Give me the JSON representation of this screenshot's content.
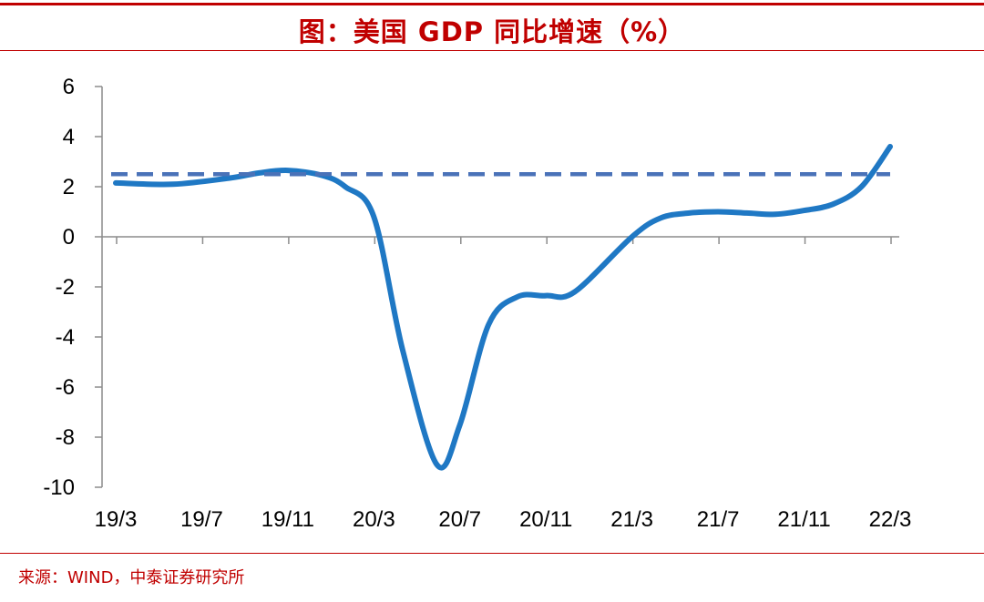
{
  "header": {
    "title": "图：美国 GDP 同比增速（%）"
  },
  "footer": {
    "source": "来源：WIND，中泰证券研究所"
  },
  "colors": {
    "accent": "#c00000",
    "series": "#1f78c4",
    "reference": "#4a72b8"
  },
  "chart_data": {
    "type": "line",
    "title": "图：美国 GDP 同比增速（%）",
    "xlabel": "",
    "ylabel": "",
    "ylim": [
      -10,
      6
    ],
    "yticks": [
      6,
      4,
      2,
      0,
      -2,
      -4,
      -6,
      -8,
      -10
    ],
    "xticks": [
      "19/3",
      "19/7",
      "19/11",
      "20/3",
      "20/7",
      "20/11",
      "21/3",
      "21/7",
      "21/11",
      "22/3"
    ],
    "grid": false,
    "legend": "none",
    "series": [
      {
        "name": "美国 GDP 同比增速",
        "style": "solid",
        "x": [
          0,
          2,
          4,
          5,
          6,
          7.2,
          8,
          9,
          10,
          11.2,
          12,
          13,
          14,
          15,
          16,
          18,
          19,
          20,
          21,
          22,
          23,
          24,
          25,
          26,
          27
        ],
        "values": [
          2.15,
          2.1,
          2.35,
          2.55,
          2.65,
          2.45,
          2.0,
          0.8,
          -4.5,
          -9.1,
          -7.5,
          -3.5,
          -2.4,
          -2.35,
          -2.2,
          0.0,
          0.75,
          0.95,
          1.0,
          0.95,
          0.9,
          1.05,
          1.3,
          2.0,
          3.6
        ]
      },
      {
        "name": "参考线",
        "style": "dashed",
        "x": [
          0,
          27
        ],
        "values": [
          2.5,
          2.5
        ]
      }
    ]
  }
}
